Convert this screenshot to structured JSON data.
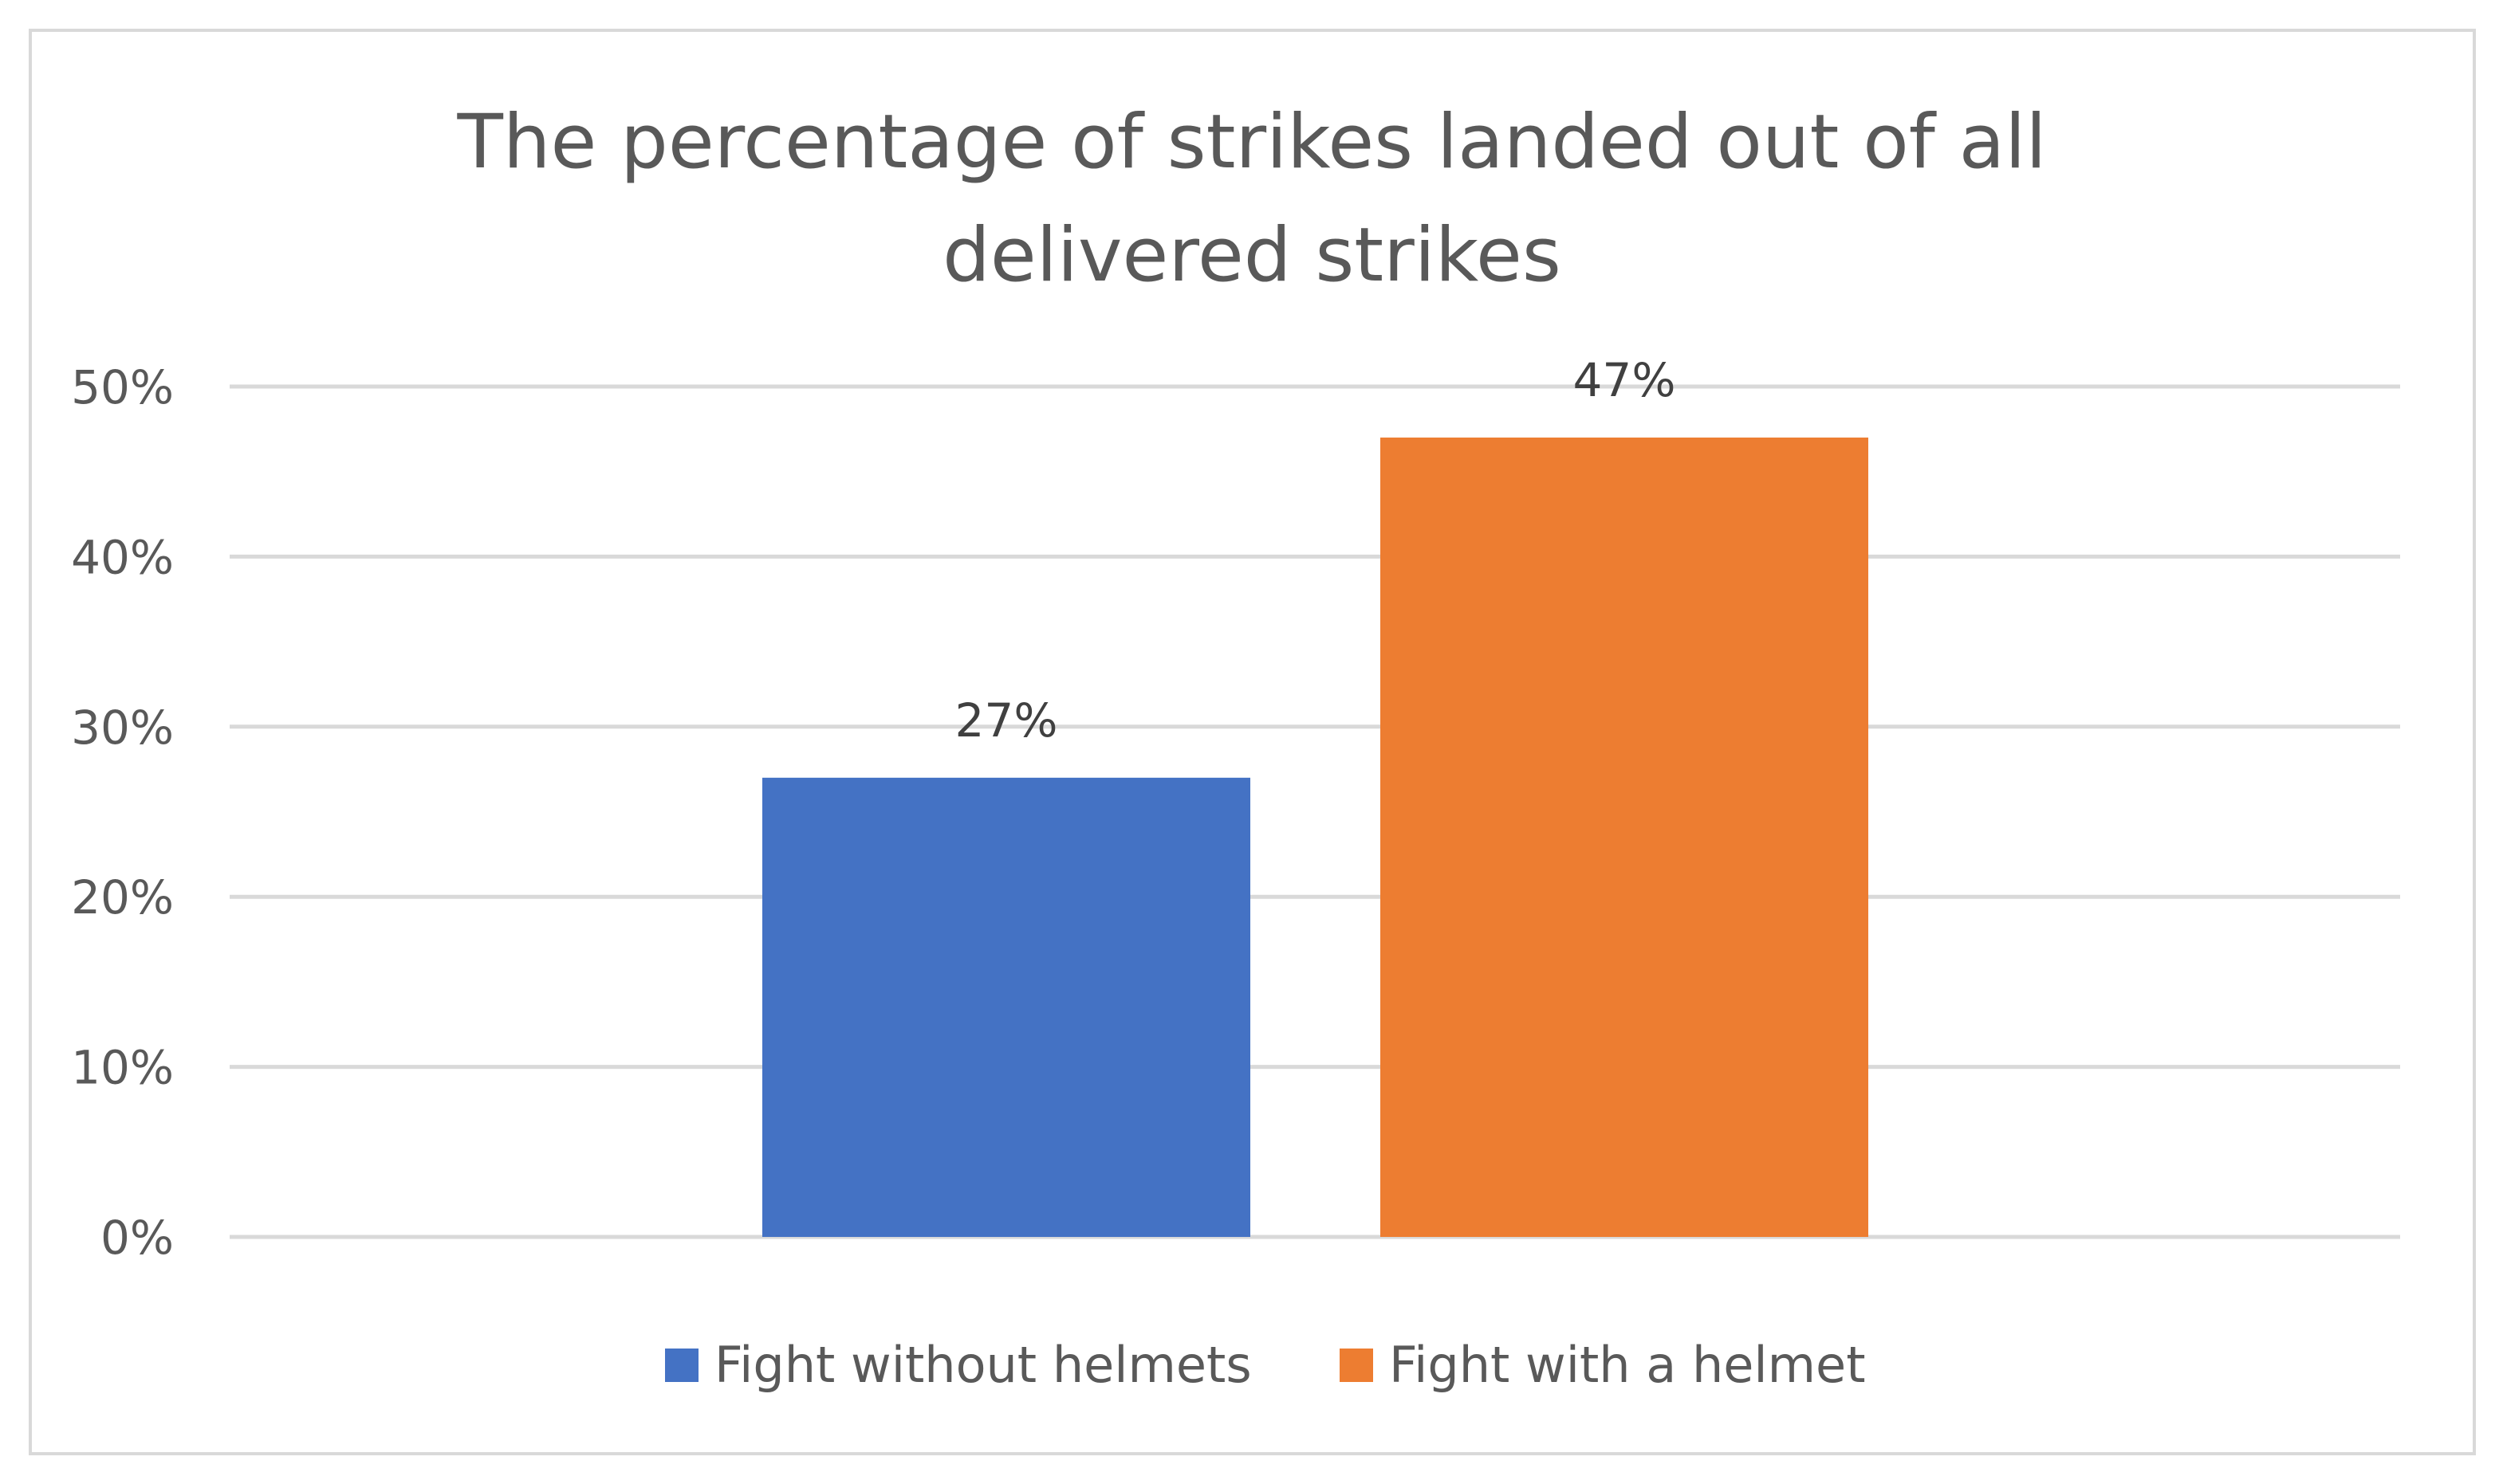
{
  "chart_data": {
    "type": "bar",
    "title_lines": [
      "The percentage of strikes landed out of all",
      "delivered strikes"
    ],
    "ylim": [
      0,
      50
    ],
    "yticks": [
      0,
      10,
      20,
      30,
      40,
      50
    ],
    "ytick_labels": [
      "0%",
      "10%",
      "20%",
      "30%",
      "40%",
      "50%"
    ],
    "grid": true,
    "legend_position": "bottom",
    "series": [
      {
        "name": "Fight without helmets",
        "value": 27,
        "label": "27%",
        "color": "#4472c4"
      },
      {
        "name": "Fight with a helmet",
        "value": 47,
        "label": "47%",
        "color": "#ed7d31"
      }
    ]
  }
}
